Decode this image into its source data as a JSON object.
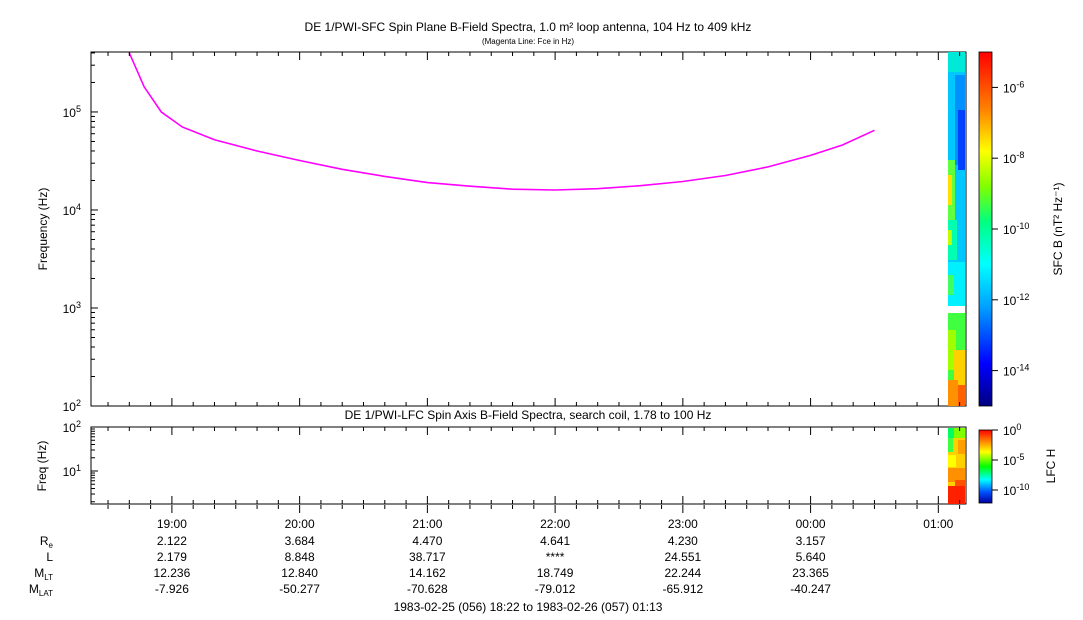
{
  "chart_data": [
    {
      "type": "line",
      "title": "DE 1/PWI-SFC  Spin Plane B-Field Spectra, 1.0 m² loop antenna, 104 Hz to 409 kHz",
      "subtitle": "(Magenta Line: Fce in Hz)",
      "ylabel": "Frequency (Hz)",
      "yscale": "log",
      "ylim": [
        100,
        409000
      ],
      "yticks": [
        {
          "base": "10",
          "exp": "2"
        },
        {
          "base": "10",
          "exp": "3"
        },
        {
          "base": "10",
          "exp": "4"
        },
        {
          "base": "10",
          "exp": "5"
        }
      ],
      "series": [
        {
          "name": "Fce",
          "color": "#ff00ff",
          "x": [
            "18:40",
            "18:47",
            "18:55",
            "19:05",
            "19:20",
            "19:40",
            "20:00",
            "20:20",
            "20:40",
            "21:00",
            "21:20",
            "21:40",
            "22:00",
            "22:20",
            "22:40",
            "23:00",
            "23:20",
            "23:40",
            "00:00",
            "00:15",
            "00:30"
          ],
          "values": [
            400000,
            180000,
            100000,
            70000,
            52000,
            40000,
            32000,
            26000,
            22000,
            19000,
            17500,
            16300,
            16000,
            16500,
            17700,
            19500,
            22500,
            27500,
            36000,
            46000,
            65000
          ]
        }
      ],
      "colorbar": {
        "label": "SFC B (nT² Hz⁻¹)",
        "ticks": [
          {
            "base": "10",
            "exp": "-6"
          },
          {
            "base": "10",
            "exp": "-8"
          },
          {
            "base": "10",
            "exp": "-10"
          },
          {
            "base": "10",
            "exp": "-12"
          },
          {
            "base": "10",
            "exp": "-14"
          }
        ]
      }
    },
    {
      "type": "heatmap",
      "title": "DE 1/PWI-LFC  Spin Axis B-Field Spectra, search coil, 1.78 to 100 Hz",
      "ylabel": "Freq (Hz)",
      "yscale": "log",
      "ylim": [
        1.78,
        100
      ],
      "yticks": [
        {
          "base": "10",
          "exp": "1"
        },
        {
          "base": "10",
          "exp": "2"
        }
      ],
      "colorbar": {
        "label": "LFC H",
        "ticks": [
          {
            "base": "10",
            "exp": "0"
          },
          {
            "base": "10",
            "exp": "-5"
          },
          {
            "base": "10",
            "exp": "-10"
          }
        ]
      }
    }
  ],
  "time_axis": {
    "ticks": [
      "19:00",
      "20:00",
      "21:00",
      "22:00",
      "23:00",
      "00:00",
      "01:00"
    ],
    "rows": [
      {
        "label": "R",
        "sub": "e",
        "values": [
          "2.122",
          "3.684",
          "4.470",
          "4.641",
          "4.230",
          "3.157"
        ]
      },
      {
        "label": "L",
        "sub": "",
        "values": [
          "2.179",
          "8.848",
          "38.717",
          "****",
          "24.551",
          "5.640"
        ]
      },
      {
        "label": "M",
        "sub": "LT",
        "values": [
          "12.236",
          "12.840",
          "14.162",
          "18.749",
          "22.244",
          "23.365"
        ]
      },
      {
        "label": "M",
        "sub": "LAT",
        "values": [
          "-7.926",
          "-50.277",
          "-70.628",
          "-79.012",
          "-65.912",
          "-40.247"
        ]
      }
    ],
    "range_label": "1983-02-25 (056) 18:22 to 1983-02-26 (057) 01:13"
  }
}
